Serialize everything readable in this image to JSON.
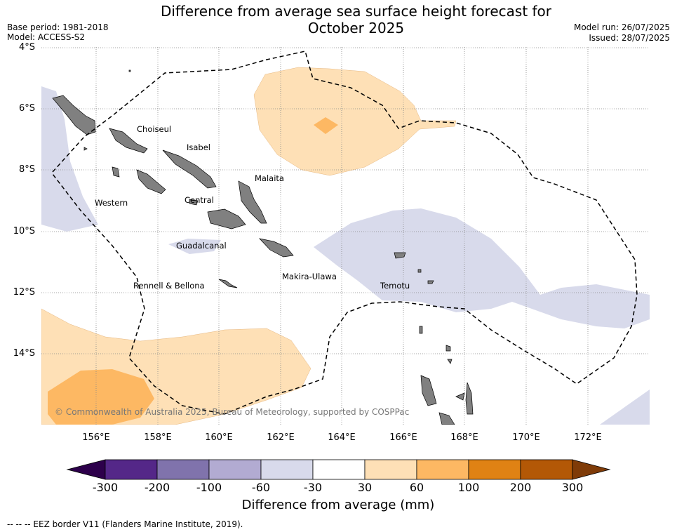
{
  "header": {
    "title_line1": "Difference from average sea surface height forecast for",
    "title_line2": "October 2025",
    "base_period": "Base period: 1981-2018",
    "model": "Model: ACCESS-S2",
    "model_run": "Model run: 26/07/2025",
    "issued": "Issued: 28/07/2025"
  },
  "map": {
    "lat_labels": [
      "4°S",
      "6°S",
      "8°S",
      "10°S",
      "12°S",
      "14°S"
    ],
    "lon_labels": [
      "156°E",
      "158°E",
      "160°E",
      "162°E",
      "164°E",
      "166°E",
      "168°E",
      "170°E",
      "172°E"
    ],
    "regions": [
      "Choiseul",
      "Isabel",
      "Malaita",
      "Western",
      "Central",
      "Guadalcanal",
      "Makira-Ulawa",
      "Rennell & Bellona",
      "Temotu"
    ],
    "copyright": "© Commonwealth of Australia 2025, Bureau of Meteorology, supported by COSPPac"
  },
  "colorbar": {
    "ticks": [
      "-300",
      "-200",
      "-100",
      "-60",
      "-30",
      "30",
      "60",
      "100",
      "200",
      "300"
    ],
    "colors": [
      "#2d004b",
      "#542788",
      "#8073ac",
      "#b2abd2",
      "#d8daeb",
      "#ffffff",
      "#fee0b6",
      "#fdb863",
      "#e08214",
      "#b35806",
      "#7f3b08"
    ],
    "title": "Difference from average (mm)"
  },
  "footer": {
    "eez_note": "--  --  -- EEZ border V11 (Flanders Marine Institute, 2019)."
  }
}
